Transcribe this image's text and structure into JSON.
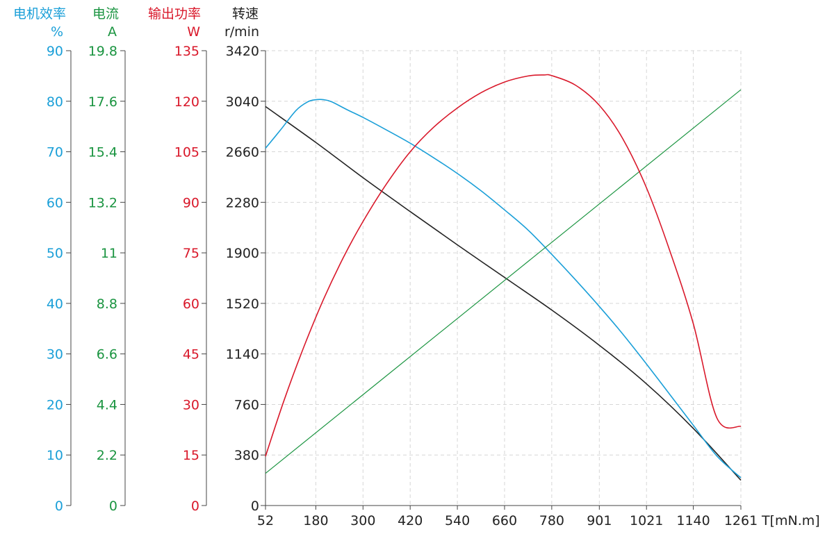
{
  "chart_data": {
    "type": "line",
    "title": "",
    "colors": {
      "efficiency": "#1a9fd8",
      "current": "#1a9440",
      "power": "#d9182a",
      "speed": "#222222",
      "grid": "#d6d6d6"
    },
    "x_axis": {
      "label": "T[mN.m]",
      "range": [
        52,
        1261
      ],
      "ticks": [
        "52",
        "180",
        "300",
        "420",
        "540",
        "660",
        "780",
        "901",
        "1021",
        "1140",
        "1261"
      ],
      "tick_values": [
        52,
        180,
        300,
        420,
        540,
        660,
        780,
        901,
        1021,
        1140,
        1261
      ]
    },
    "y_axes": [
      {
        "key": "efficiency",
        "name": "电机效率",
        "unit": "%",
        "range": [
          0,
          90
        ],
        "ticks": [
          "90",
          "80",
          "70",
          "60",
          "50",
          "40",
          "30",
          "20",
          "10",
          "0"
        ]
      },
      {
        "key": "current",
        "name": "电流",
        "unit": "A",
        "range": [
          0,
          19.8
        ],
        "ticks": [
          "19.8",
          "17.6",
          "15.4",
          "13.2",
          "11",
          "8.8",
          "6.6",
          "4.4",
          "2.2",
          "0"
        ]
      },
      {
        "key": "power",
        "name": "输出功率",
        "unit": "W",
        "range": [
          0,
          135
        ],
        "ticks": [
          "135",
          "120",
          "105",
          "90",
          "75",
          "60",
          "45",
          "30",
          "15",
          "0"
        ]
      },
      {
        "key": "speed",
        "name": "转速",
        "unit": "r/min",
        "range": [
          0,
          3420
        ],
        "ticks": [
          "3420",
          "3040",
          "2660",
          "2280",
          "1900",
          "1520",
          "1140",
          "760",
          "380",
          "0"
        ]
      }
    ],
    "grid": true,
    "series": [
      {
        "key": "speed",
        "axis": "speed",
        "x": [
          52,
          180,
          300,
          420,
          540,
          660,
          780,
          901,
          1021,
          1140,
          1261
        ],
        "y": [
          3000,
          2730,
          2465,
          2210,
          1960,
          1715,
          1470,
          1205,
          915,
          580,
          190
        ]
      },
      {
        "key": "efficiency",
        "axis": "efficiency",
        "x": [
          52,
          90,
          130,
          160,
          180,
          200,
          220,
          260,
          300,
          360,
          420,
          480,
          540,
          600,
          660,
          720,
          780,
          840,
          901,
          960,
          1021,
          1080,
          1140,
          1200,
          1261
        ],
        "y": [
          70.7,
          74.3,
          78.2,
          79.9,
          80.3,
          80.3,
          79.9,
          78.3,
          76.8,
          74.3,
          71.7,
          68.8,
          65.7,
          62.3,
          58.5,
          54.5,
          49.7,
          44.7,
          39.4,
          34.0,
          28.0,
          22.0,
          15.9,
          9.8,
          5.5
        ]
      },
      {
        "key": "current",
        "axis": "current",
        "x": [
          52,
          1261
        ],
        "y": [
          1.4,
          18.1
        ]
      },
      {
        "key": "power",
        "axis": "power",
        "x": [
          52,
          100,
          150,
          200,
          250,
          300,
          360,
          420,
          480,
          540,
          600,
          660,
          720,
          760,
          780,
          840,
          901,
          960,
          1021,
          1080,
          1140,
          1200,
          1261
        ],
        "y": [
          14.6,
          31.5,
          47.2,
          61.3,
          73.6,
          84.3,
          95.5,
          105.0,
          112.3,
          118.0,
          122.5,
          125.7,
          127.5,
          127.8,
          127.6,
          124.8,
          118.8,
          109.0,
          94.3,
          75.7,
          54.0,
          26.0,
          23.5
        ]
      }
    ]
  }
}
